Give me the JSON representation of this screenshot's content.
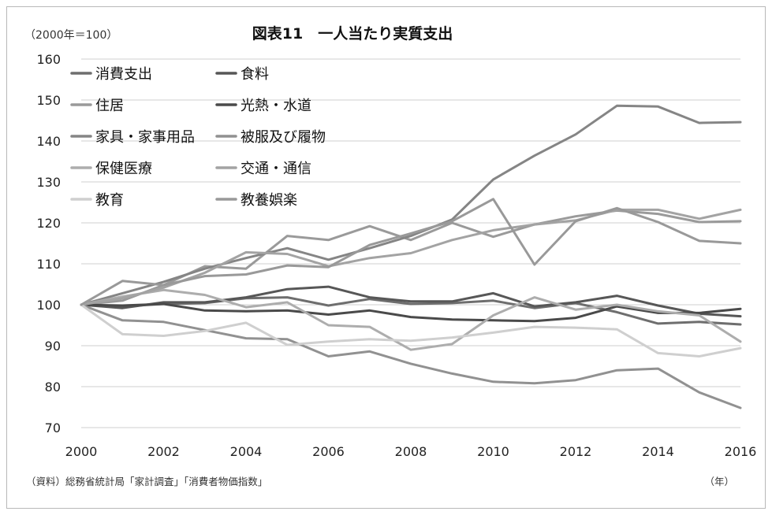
{
  "chart_data": {
    "type": "line",
    "title": "図表11　一人当たり実質支出",
    "unit_label": "（2000年＝100）",
    "x_unit_label": "（年）",
    "source": "（資料）総務省統計局「家計調査」「消費者物価指数」",
    "x": [
      2000,
      2001,
      2002,
      2003,
      2004,
      2005,
      2006,
      2007,
      2008,
      2009,
      2010,
      2011,
      2012,
      2013,
      2014,
      2015,
      2016
    ],
    "x_ticks": [
      "2000",
      "2002",
      "2004",
      "2006",
      "2008",
      "2010",
      "2012",
      "2014",
      "2016"
    ],
    "y_ticks": [
      "70",
      "80",
      "90",
      "100",
      "110",
      "120",
      "130",
      "140",
      "150",
      "160"
    ],
    "ylim": [
      70,
      160
    ],
    "grid": true,
    "legend_position": "top-left",
    "series": [
      {
        "name": "消費支出",
        "color": "#6e6e6e",
        "values": [
          100,
          99.6,
          100.2,
          100.4,
          101.6,
          101.8,
          99.8,
          101.4,
          100.2,
          100.4,
          101.0,
          99.2,
          100.4,
          98.2,
          95.4,
          95.8,
          95.2
        ]
      },
      {
        "name": "食料",
        "color": "#575757",
        "values": [
          100,
          99.2,
          100.6,
          100.6,
          101.8,
          103.8,
          104.4,
          101.8,
          100.8,
          100.8,
          102.8,
          99.6,
          100.6,
          102.2,
          99.8,
          97.8,
          97.2
        ]
      },
      {
        "name": "住居",
        "color": "#9a9a9a",
        "values": [
          100,
          101.0,
          104.8,
          109.4,
          108.8,
          116.8,
          115.8,
          119.2,
          115.8,
          120.0,
          116.6,
          119.6,
          121.6,
          123.0,
          122.2,
          120.2,
          120.4
        ]
      },
      {
        "name": "光熱・水道",
        "color": "#4a4a4a",
        "values": [
          100,
          99.8,
          100.2,
          98.6,
          98.4,
          98.6,
          97.6,
          98.6,
          97.0,
          96.4,
          96.2,
          96.0,
          96.8,
          99.6,
          98.0,
          98.0,
          99.0
        ]
      },
      {
        "name": "家具・家事用品",
        "color": "#858585",
        "values": [
          100,
          102.8,
          105.6,
          108.8,
          111.4,
          113.8,
          111.0,
          113.8,
          116.8,
          120.8,
          130.6,
          136.4,
          141.6,
          148.6,
          148.4,
          144.4,
          144.6
        ]
      },
      {
        "name": "被服及び履物",
        "color": "#919191",
        "values": [
          100,
          96.2,
          95.8,
          93.8,
          91.8,
          91.6,
          87.4,
          88.6,
          85.6,
          83.2,
          81.2,
          80.8,
          81.6,
          84.0,
          84.4,
          78.6,
          74.8
        ]
      },
      {
        "name": "保健医療",
        "color": "#adadad",
        "values": [
          100,
          102.0,
          103.6,
          102.4,
          99.4,
          100.6,
          95.0,
          94.6,
          89.0,
          90.4,
          97.4,
          101.8,
          98.8,
          100.0,
          98.4,
          97.4,
          91.0
        ]
      },
      {
        "name": "交通・通信",
        "color": "#a3a3a3",
        "values": [
          100,
          101.6,
          104.2,
          107.8,
          112.8,
          112.4,
          109.4,
          111.4,
          112.6,
          115.8,
          118.2,
          119.6,
          120.6,
          123.2,
          123.2,
          121.0,
          123.2
        ]
      },
      {
        "name": "教育",
        "color": "#cfcfcf",
        "values": [
          100,
          92.8,
          92.4,
          93.6,
          95.6,
          90.2,
          91.0,
          91.6,
          91.2,
          92.0,
          93.2,
          94.6,
          94.4,
          94.0,
          88.2,
          87.4,
          89.4
        ]
      },
      {
        "name": "教養娯楽",
        "color": "#999999",
        "values": [
          100,
          105.8,
          104.8,
          107.0,
          107.4,
          109.6,
          109.2,
          114.6,
          117.4,
          120.4,
          125.8,
          109.8,
          120.4,
          123.6,
          120.2,
          115.6,
          115.0
        ]
      }
    ]
  }
}
